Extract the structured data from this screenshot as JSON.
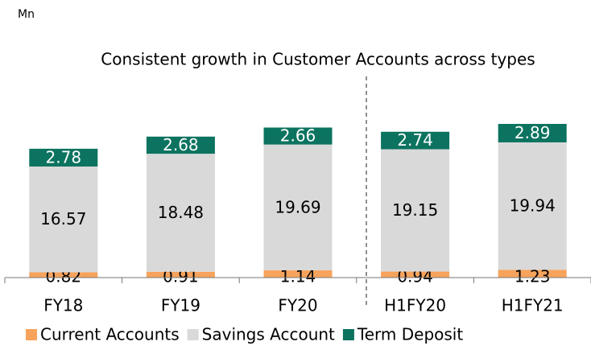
{
  "chart_data": {
    "type": "stacked_bar",
    "unit": "Mn",
    "title": "Consistent growth in Customer Accounts across types",
    "categories": [
      "FY18",
      "FY19",
      "FY20",
      "H1FY20",
      "H1FY21"
    ],
    "series": [
      {
        "name": "Current Accounts",
        "color": "#f7a35c",
        "values": [
          0.82,
          0.91,
          1.14,
          0.94,
          1.23
        ]
      },
      {
        "name": "Savings Account",
        "color": "#d9d9d9",
        "values": [
          16.57,
          18.48,
          19.69,
          19.15,
          19.94
        ]
      },
      {
        "name": "Term Deposit",
        "color": "#0b735f",
        "values": [
          2.78,
          2.68,
          2.66,
          2.74,
          2.89
        ]
      }
    ]
  }
}
